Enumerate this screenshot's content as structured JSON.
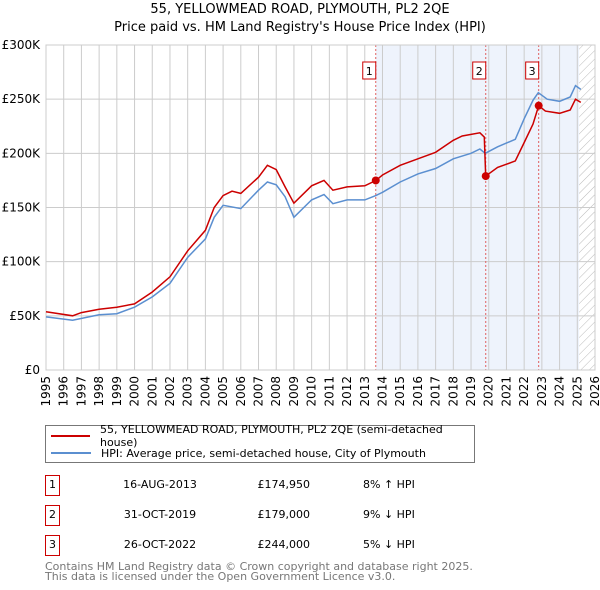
{
  "chart_data": {
    "type": "line",
    "title": "55, YELLOWMEAD ROAD, PLYMOUTH, PL2 2QE",
    "subtitle": "Price paid vs. HM Land Registry's House Price Index (HPI)",
    "xlim": [
      1995,
      2026
    ],
    "ylim": [
      0,
      300000
    ],
    "yticks": [
      0,
      50000,
      100000,
      150000,
      200000,
      250000,
      300000
    ],
    "ytick_labels": [
      "£0",
      "£50K",
      "£100K",
      "£150K",
      "£200K",
      "£250K",
      "£300K"
    ],
    "xticks": [
      1995,
      1996,
      1997,
      1998,
      1999,
      2000,
      2001,
      2002,
      2003,
      2004,
      2005,
      2006,
      2007,
      2008,
      2009,
      2010,
      2011,
      2012,
      2013,
      2014,
      2015,
      2016,
      2017,
      2018,
      2019,
      2020,
      2021,
      2022,
      2023,
      2024,
      2025,
      2026
    ],
    "grid": true,
    "shaded_range": [
      2013.62,
      2025.1
    ],
    "hatched_from": 2025.1,
    "series": [
      {
        "name": "55, YELLOWMEAD ROAD, PLYMOUTH, PL2 2QE (semi-detached house)",
        "color": "#cc0000",
        "x": [
          1995,
          1996.5,
          1997,
          1998,
          1999,
          2000,
          2001,
          2002,
          2003,
          2004,
          2004.5,
          2005,
          2005.5,
          2006,
          2007,
          2007.5,
          2008,
          2008.5,
          2009,
          2010,
          2010.7,
          2011.2,
          2012,
          2013,
          2013.62,
          2014,
          2015,
          2016,
          2017,
          2018,
          2018.5,
          2019.5,
          2019.75,
          2019.83,
          2020.5,
          2021,
          2021.5,
          2022,
          2022.5,
          2022.82,
          2023.2,
          2024,
          2024.6,
          2024.9,
          2025.2
        ],
        "y": [
          53700,
          50000,
          53000,
          56000,
          58000,
          61000,
          72000,
          86000,
          110000,
          129000,
          150000,
          161000,
          165000,
          163000,
          178000,
          189000,
          185000,
          169000,
          154000,
          170000,
          175000,
          166000,
          169000,
          170000,
          174950,
          180000,
          189000,
          195000,
          201000,
          212000,
          216000,
          219000,
          215000,
          179000,
          187000,
          190000,
          193000,
          210000,
          227000,
          244000,
          239000,
          237000,
          240000,
          250000,
          247000
        ]
      },
      {
        "name": "HPI: Average price, semi-detached house, City of Plymouth",
        "color": "#5b8fd0",
        "x": [
          1995,
          1996.5,
          1998,
          1999,
          2000,
          2001,
          2002,
          2003,
          2004,
          2004.5,
          2005,
          2006,
          2007,
          2007.5,
          2008,
          2008.5,
          2009,
          2010,
          2010.7,
          2011.2,
          2012,
          2013,
          2013.62,
          2014,
          2015,
          2016,
          2017,
          2018,
          2019,
          2019.5,
          2019.8,
          2020.5,
          2021.5,
          2022,
          2022.5,
          2022.8,
          2023.3,
          2024,
          2024.6,
          2024.9,
          2025.2
        ],
        "y": [
          49000,
          46000,
          51000,
          52000,
          58000,
          67500,
          80000,
          104000,
          121000,
          141000,
          152000,
          149000,
          166000,
          173500,
          171000,
          160000,
          141000,
          157000,
          162000,
          153500,
          157000,
          157000,
          161000,
          164000,
          173500,
          181000,
          186000,
          195000,
          200000,
          204000,
          200000,
          206000,
          213000,
          232000,
          249000,
          256000,
          250000,
          248000,
          252000,
          262500,
          259000
        ]
      }
    ],
    "sales": [
      {
        "label": "1",
        "x": 2013.62,
        "date": "16-AUG-2013",
        "price": 174950,
        "price_label": "£174,950",
        "hpi": "8% ↑ HPI"
      },
      {
        "label": "2",
        "x": 2019.83,
        "date": "31-OCT-2019",
        "price": 179000,
        "price_label": "£179,000",
        "hpi": "9% ↓ HPI"
      },
      {
        "label": "3",
        "x": 2022.82,
        "date": "26-OCT-2022",
        "price": 244000,
        "price_label": "£244,000",
        "hpi": "5% ↓ HPI"
      }
    ]
  },
  "footer": {
    "line1": "Contains HM Land Registry data © Crown copyright and database right 2025.",
    "line2": "This data is licensed under the Open Government Licence v3.0."
  }
}
